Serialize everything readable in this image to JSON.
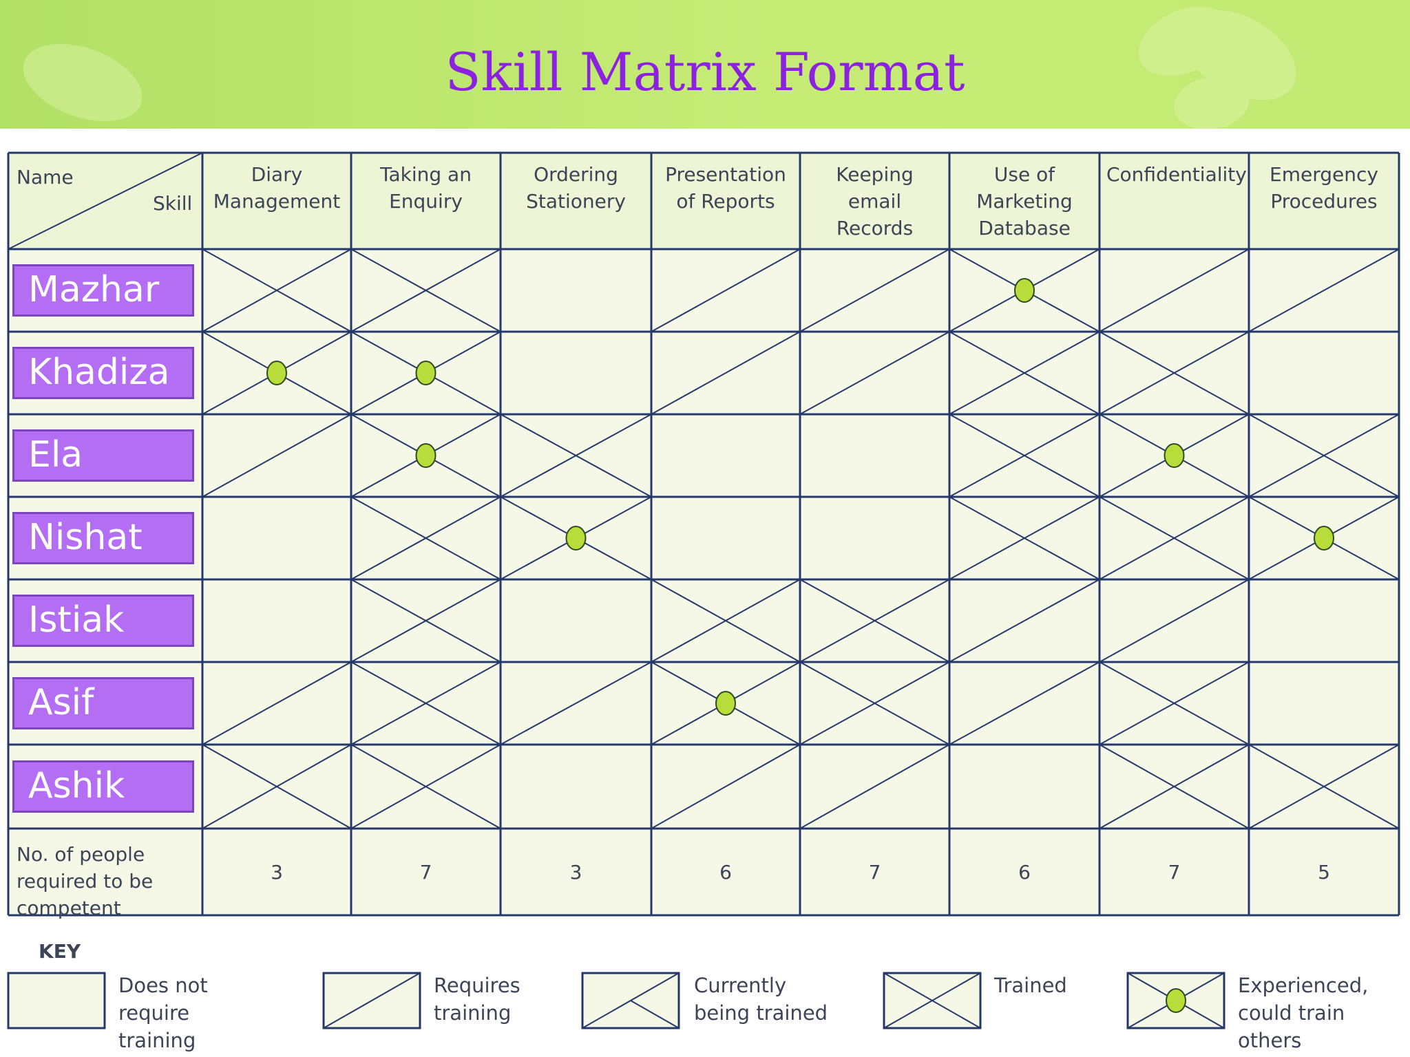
{
  "title": "Skill Matrix Format",
  "corner": {
    "name_label": "Name",
    "skill_label": "Skill"
  },
  "skills": [
    "Diary Management",
    "Taking an Enquiry",
    "Ordering Stationery",
    "Presentation of Reports",
    "Keeping email Records",
    "Use of Marketing Database",
    "Confidentiality",
    "Emergency Procedures"
  ],
  "people": [
    {
      "name": "Mazhar",
      "status": [
        "trained",
        "trained",
        "none",
        "requires",
        "requires",
        "experienced",
        "requires",
        "requires"
      ]
    },
    {
      "name": "Khadiza",
      "status": [
        "experienced",
        "experienced",
        "none",
        "requires",
        "requires",
        "trained",
        "trained",
        "none"
      ]
    },
    {
      "name": "Ela",
      "status": [
        "requires",
        "experienced",
        "trained",
        "none",
        "none",
        "trained",
        "experienced",
        "trained"
      ]
    },
    {
      "name": "Nishat",
      "status": [
        "none",
        "trained",
        "experienced",
        "none",
        "none",
        "trained",
        "trained",
        "experienced"
      ]
    },
    {
      "name": "Istiak",
      "status": [
        "none",
        "trained",
        "none",
        "trained",
        "trained",
        "requires",
        "requires",
        "none"
      ]
    },
    {
      "name": "Asif",
      "status": [
        "requires",
        "trained",
        "requires",
        "experienced",
        "trained",
        "requires",
        "trained",
        "none"
      ]
    },
    {
      "name": "Ashik",
      "status": [
        "trained",
        "trained",
        "none",
        "requires",
        "requires",
        "none",
        "trained",
        "trained"
      ]
    }
  ],
  "required_row": {
    "label": "No. of people required to be competent",
    "counts": [
      "3",
      "7",
      "3",
      "6",
      "7",
      "6",
      "7",
      "5"
    ]
  },
  "key": {
    "title": "KEY",
    "items": [
      {
        "status": "none",
        "label": "Does not require training"
      },
      {
        "status": "requires",
        "label": "Requires training"
      },
      {
        "status": "current",
        "label": "Currently being trained"
      },
      {
        "status": "trained",
        "label": "Trained"
      },
      {
        "status": "experienced",
        "label": "Experienced, could train others"
      }
    ]
  },
  "colors": {
    "header_green": "#c2ea72",
    "title_purple": "#8c22e0",
    "name_box": "#b36ef3",
    "grid_line": "#26386a",
    "cell_bg": "#f5f8e6",
    "header_cell_bg": "#eef4d6",
    "dot": "#b8dc3a"
  }
}
